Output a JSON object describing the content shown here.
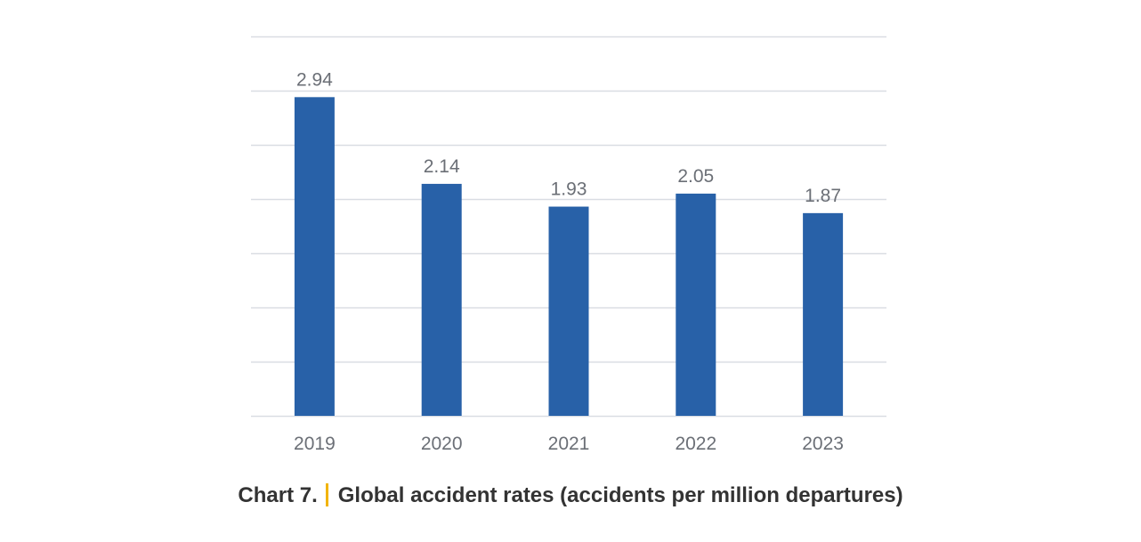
{
  "chart_data": {
    "type": "bar",
    "categories": [
      "2019",
      "2020",
      "2021",
      "2022",
      "2023"
    ],
    "values": [
      2.94,
      2.14,
      1.93,
      2.05,
      1.87
    ],
    "data_labels": [
      "2.94",
      "2.14",
      "1.93",
      "2.05",
      "1.87"
    ],
    "ylim": [
      0,
      3.5
    ],
    "gridline_step": 0.5,
    "grid": true,
    "y_tick_labels_shown": false,
    "bar_color": "#2861a8",
    "gridline_color": "#d9dde3"
  },
  "caption": {
    "label": "Chart 7.",
    "title": "Global accident rates (accidents per million departures)",
    "separator_color": "#f2b400"
  }
}
